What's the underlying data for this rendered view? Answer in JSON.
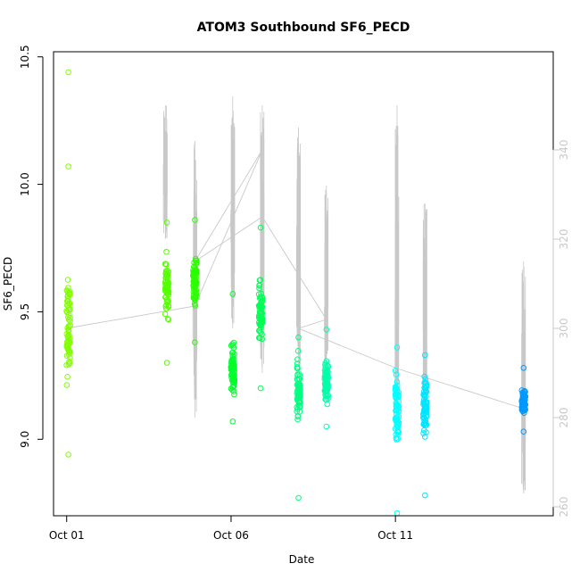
{
  "chart_data": {
    "type": "scatter",
    "title": "ATOM3 Southbound SF6_PECD",
    "xlabel": "Date",
    "ylabel": "SF6_PECD",
    "x_tick_labels": [
      "Oct 01",
      "Oct 06",
      "Oct 11"
    ],
    "x_ticks": [
      1,
      6,
      11
    ],
    "xlim": [
      0.6,
      15.8
    ],
    "ylim": [
      8.7,
      10.52
    ],
    "y_ticks": [
      9.0,
      9.5,
      10.0,
      10.5
    ],
    "y_tick_labels": [
      "9.0",
      "9.5",
      "10.0",
      "10.5"
    ],
    "secondary_axis": {
      "ylim": [
        258,
        362
      ],
      "ticks": [
        260,
        280,
        300,
        320,
        340
      ],
      "tick_labels": [
        "260",
        "280",
        "300",
        "320",
        "340"
      ],
      "color": "#c8c8c8"
    },
    "grid": false,
    "series": [
      {
        "marker": "open-circle",
        "clusters": [
          {
            "x": 1.05,
            "y_min": 8.94,
            "y_max": 10.07,
            "y_center": 9.45,
            "outlier": 10.44,
            "color": "#80ff00"
          },
          {
            "x": 4.05,
            "y_min": 9.3,
            "y_max": 9.85,
            "y_center": 9.6,
            "color": "#55ff00"
          },
          {
            "x": 4.9,
            "y_min": 9.38,
            "y_max": 9.86,
            "y_center": 9.62,
            "color": "#2bff00"
          },
          {
            "x": 6.05,
            "y_min": 9.07,
            "y_max": 9.57,
            "y_center": 9.27,
            "color": "#00ff2b"
          },
          {
            "x": 6.9,
            "y_min": 9.2,
            "y_max": 9.83,
            "y_center": 9.48,
            "color": "#00ff55"
          },
          {
            "x": 8.05,
            "y_min": 8.77,
            "y_max": 9.4,
            "y_center": 9.2,
            "color": "#00ff80"
          },
          {
            "x": 8.9,
            "y_min": 9.05,
            "y_max": 9.43,
            "y_center": 9.22,
            "color": "#00ffaa"
          },
          {
            "x": 11.05,
            "y_min": 8.71,
            "y_max": 9.36,
            "y_center": 9.12,
            "color": "#00ffff"
          },
          {
            "x": 11.9,
            "y_min": 8.78,
            "y_max": 9.33,
            "y_center": 9.13,
            "color": "#00e5ff"
          },
          {
            "x": 14.9,
            "y_min": 9.03,
            "y_max": 9.28,
            "y_center": 9.15,
            "color": "#0099ff"
          }
        ]
      },
      {
        "axis": "secondary",
        "color": "#c8c8c8",
        "connector_x": [
          1.0,
          4.9,
          6.95,
          4.9,
          6.95,
          8.9,
          8.05,
          11.05,
          14.9
        ],
        "connector_y": [
          300,
          305,
          340,
          315,
          325,
          302,
          300,
          291,
          282
        ],
        "spikes": [
          {
            "x": 4.0,
            "lo": 320,
            "hi": 350
          },
          {
            "x": 4.9,
            "lo": 280,
            "hi": 342
          },
          {
            "x": 6.05,
            "lo": 300,
            "hi": 352
          },
          {
            "x": 6.95,
            "lo": 290,
            "hi": 350
          },
          {
            "x": 8.05,
            "lo": 292,
            "hi": 345
          },
          {
            "x": 8.9,
            "lo": 290,
            "hi": 332
          },
          {
            "x": 11.05,
            "lo": 282,
            "hi": 350
          },
          {
            "x": 11.9,
            "lo": 280,
            "hi": 328
          },
          {
            "x": 14.9,
            "lo": 263,
            "hi": 315
          }
        ]
      }
    ]
  }
}
